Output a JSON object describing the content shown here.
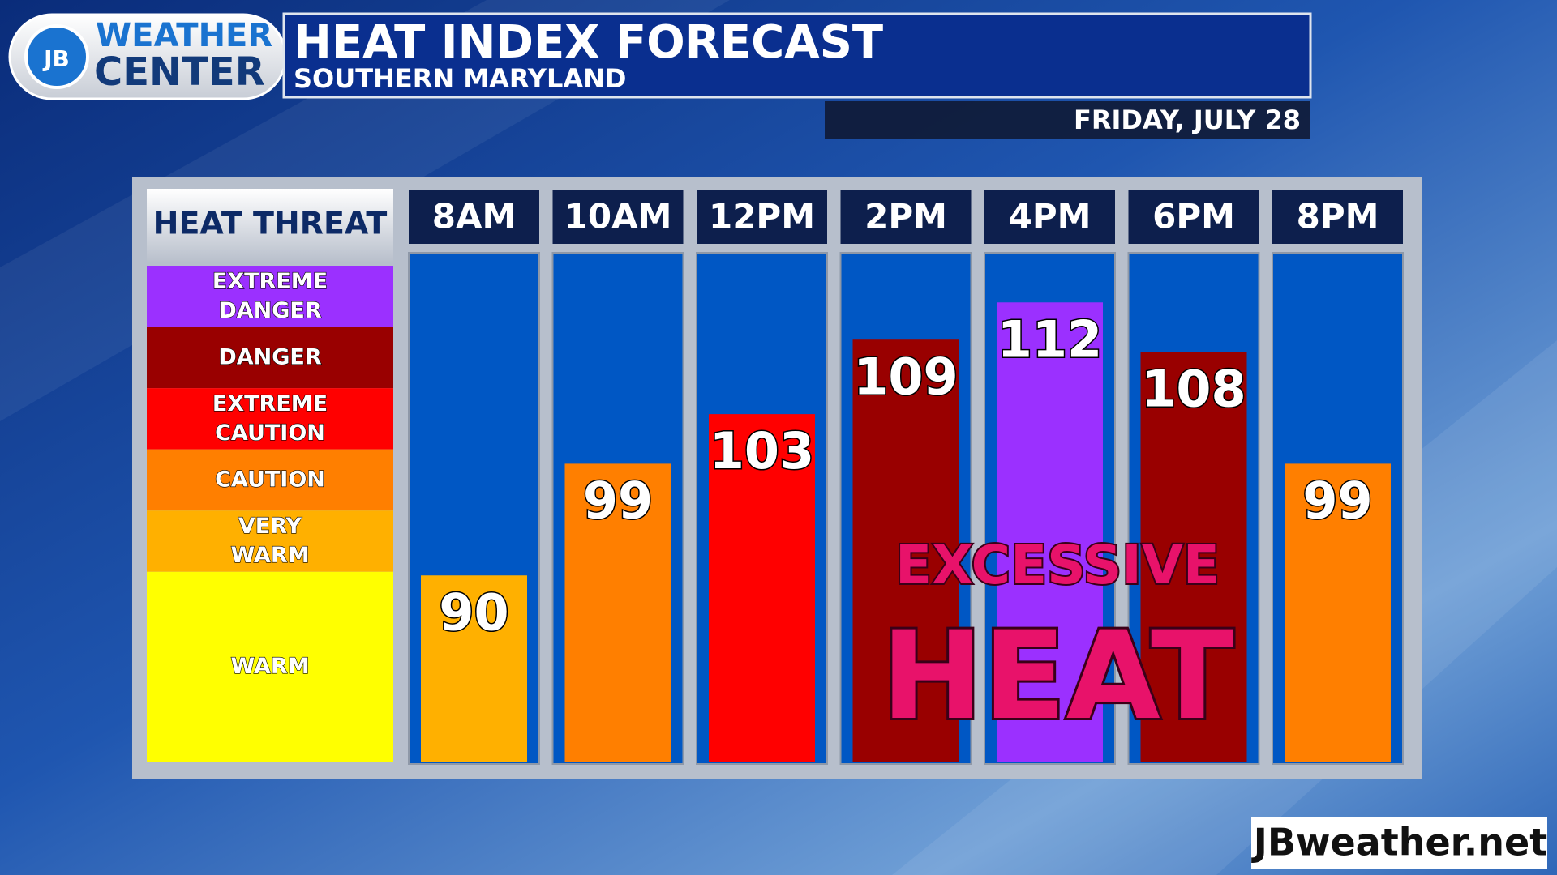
{
  "brand": {
    "badge": "JB",
    "line1": "WEATHER",
    "line2": "CENTER",
    "footer": "JBweather.net"
  },
  "chart_data": {
    "type": "bar",
    "title": "HEAT INDEX FORECAST",
    "subtitle": "SOUTHERN MARYLAND",
    "date": "FRIDAY, JULY 28",
    "categories": [
      "8AM",
      "10AM",
      "12PM",
      "2PM",
      "4PM",
      "6PM",
      "8PM"
    ],
    "values": [
      90,
      99,
      103,
      109,
      112,
      108,
      99
    ],
    "colors": [
      "#ffb000",
      "#ff7f00",
      "#ff0000",
      "#990000",
      "#9b30ff",
      "#990000",
      "#ff7f00"
    ],
    "ylim": [
      75,
      116
    ],
    "heat_threat": {
      "title": "HEAT THREAT",
      "levels": [
        {
          "label": "EXTREME DANGER",
          "color": "#9b30ff"
        },
        {
          "label": "DANGER",
          "color": "#990000"
        },
        {
          "label": "EXTREME CAUTION",
          "color": "#ff0000"
        },
        {
          "label": "CAUTION",
          "color": "#ff7f00"
        },
        {
          "label": "VERY WARM",
          "color": "#ffb000"
        },
        {
          "label": "WARM",
          "color": "#ffff00"
        }
      ]
    },
    "annotation": {
      "line1": "EXCESSIVE",
      "line2": "HEAT"
    }
  }
}
